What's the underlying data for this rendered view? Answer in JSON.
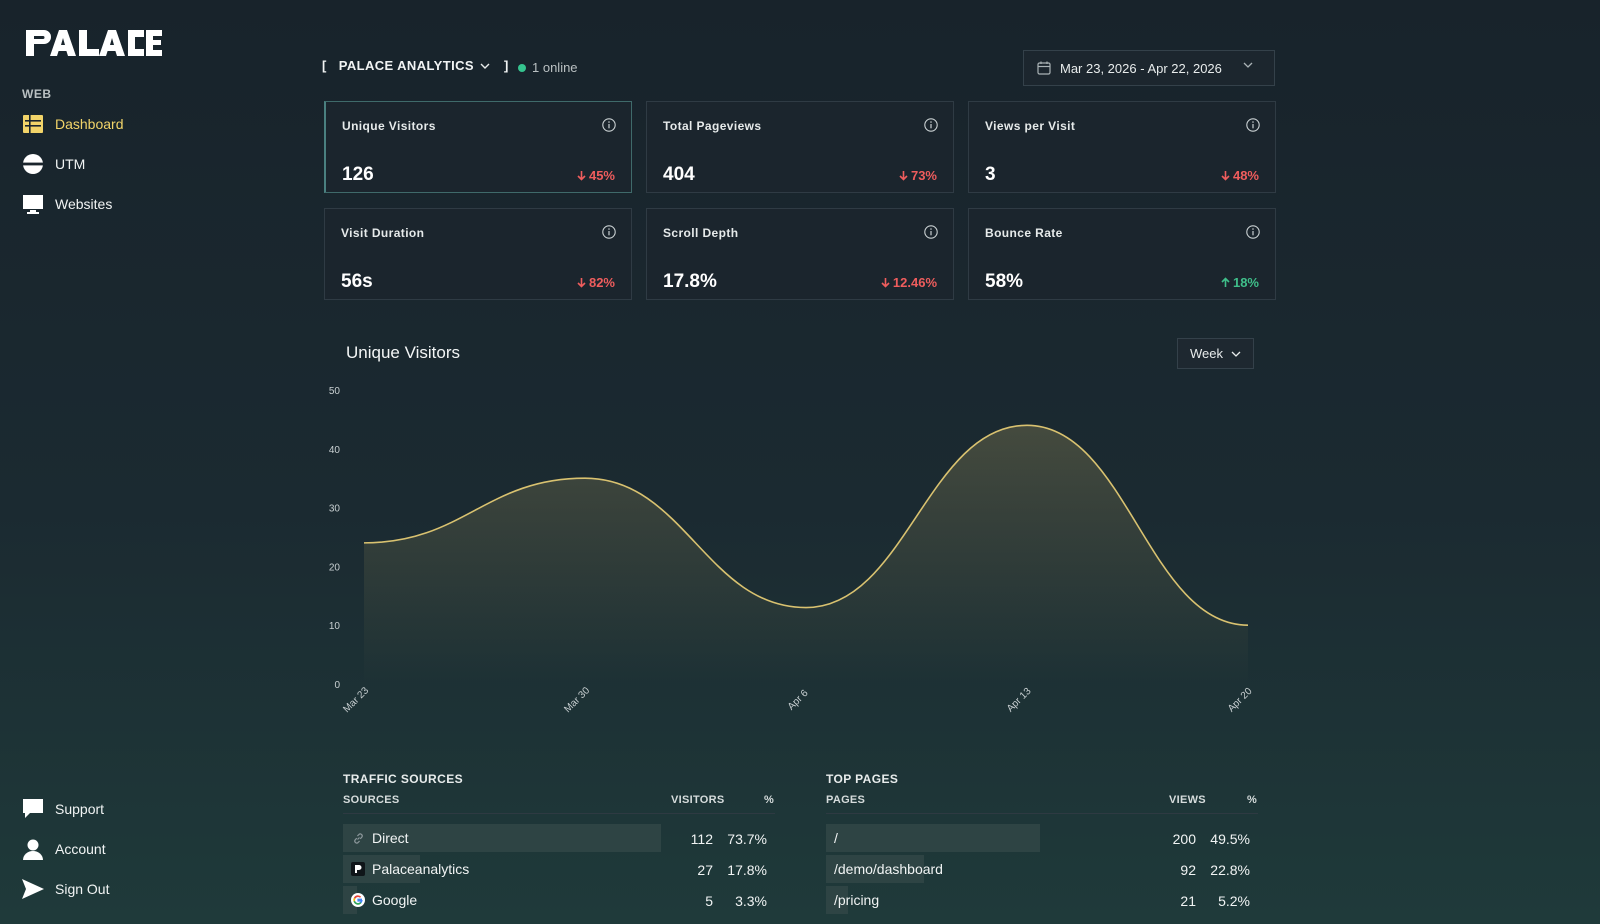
{
  "brand": {
    "logo_text": "PALACE"
  },
  "sidebar": {
    "section_label": "WEB",
    "items": [
      {
        "label": "Dashboard",
        "icon": "dashboard-icon",
        "active": true
      },
      {
        "label": "UTM",
        "icon": "utm-icon"
      },
      {
        "label": "Websites",
        "icon": "monitor-icon"
      }
    ],
    "bottom_items": [
      {
        "label": "Support",
        "icon": "chat-icon"
      },
      {
        "label": "Account",
        "icon": "user-icon"
      },
      {
        "label": "Sign Out",
        "icon": "send-icon"
      }
    ]
  },
  "header": {
    "bracket_open": "[",
    "site_name": "PALACE ANALYTICS",
    "bracket_close": "]",
    "online_text": "1 online",
    "date_range": "Mar 23, 2026 - Apr 22, 2026"
  },
  "stats": [
    {
      "title": "Unique Visitors",
      "value": "126",
      "change": "45%",
      "direction": "down",
      "selected": true
    },
    {
      "title": "Total Pageviews",
      "value": "404",
      "change": "73%",
      "direction": "down"
    },
    {
      "title": "Views per Visit",
      "value": "3",
      "change": "48%",
      "direction": "down"
    },
    {
      "title": "Visit Duration",
      "value": "56s",
      "change": "82%",
      "direction": "down"
    },
    {
      "title": "Scroll Depth",
      "value": "17.8%",
      "change": "12.46%",
      "direction": "down"
    },
    {
      "title": "Bounce Rate",
      "value": "58%",
      "change": "18%",
      "direction": "up"
    }
  ],
  "chart_panel": {
    "title": "Unique Visitors",
    "interval": "Week"
  },
  "chart_data": {
    "type": "area",
    "title": "Unique Visitors",
    "x": [
      "Mar 23",
      "Mar 30",
      "Apr 6",
      "Apr 13",
      "Apr 20"
    ],
    "series": [
      {
        "values": [
          24,
          35,
          13,
          44,
          10
        ]
      }
    ],
    "ylim": [
      0,
      50
    ],
    "yticks": [
      0,
      10,
      20,
      30,
      40,
      50
    ],
    "color": "#d9c270",
    "grid": false
  },
  "traffic_sources": {
    "title": "TRAFFIC SOURCES",
    "col_name": "SOURCES",
    "col_count": "VISITORS",
    "col_pct": "%",
    "rows": [
      {
        "name": "Direct",
        "icon": "link-icon",
        "count": "112",
        "pct": "73.7%",
        "share": 0.737
      },
      {
        "name": "Palaceanalytics",
        "icon": "palace-favicon-icon",
        "count": "27",
        "pct": "17.8%",
        "share": 0.178
      },
      {
        "name": "Google",
        "icon": "google-icon",
        "count": "5",
        "pct": "3.3%",
        "share": 0.033
      }
    ]
  },
  "top_pages": {
    "title": "TOP PAGES",
    "col_name": "PAGES",
    "col_count": "VIEWS",
    "col_pct": "%",
    "rows": [
      {
        "name": "/",
        "count": "200",
        "pct": "49.5%",
        "share": 0.495
      },
      {
        "name": "/demo/dashboard",
        "count": "92",
        "pct": "22.8%",
        "share": 0.228
      },
      {
        "name": "/pricing",
        "count": "21",
        "pct": "5.2%",
        "share": 0.052
      }
    ]
  }
}
